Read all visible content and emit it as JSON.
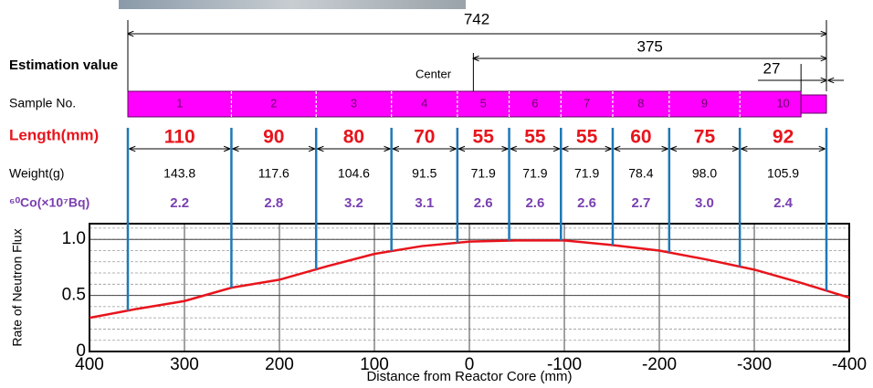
{
  "header": {
    "estimation": "Estimation value",
    "center": "Center"
  },
  "dimensions": {
    "total": 742,
    "center_span": 375,
    "end_gap": 27
  },
  "row_labels": {
    "sample": "Sample No.",
    "length": "Length(mm)",
    "weight": "Weight(g)",
    "co": "⁶⁰Co(×10⁷Bq)"
  },
  "samples": [
    {
      "no": 1,
      "length": 110,
      "weight": "143.8",
      "co": "2.2"
    },
    {
      "no": 2,
      "length": 90,
      "weight": "117.6",
      "co": "2.8"
    },
    {
      "no": 3,
      "length": 80,
      "weight": "104.6",
      "co": "3.2"
    },
    {
      "no": 4,
      "length": 70,
      "weight": "91.5",
      "co": "3.1"
    },
    {
      "no": 5,
      "length": 55,
      "weight": "71.9",
      "co": "2.6"
    },
    {
      "no": 6,
      "length": 55,
      "weight": "71.9",
      "co": "2.6"
    },
    {
      "no": 7,
      "length": 55,
      "weight": "71.9",
      "co": "2.6"
    },
    {
      "no": 8,
      "length": 60,
      "weight": "78.4",
      "co": "2.7"
    },
    {
      "no": 9,
      "length": 75,
      "weight": "98.0",
      "co": "3.0"
    },
    {
      "no": 10,
      "length": 92,
      "weight": "105.9",
      "co": "2.4"
    }
  ],
  "chart_data": {
    "type": "line",
    "x_label": "Distance from Reactor Core (mm)",
    "y_label": "Rate of Neutron Flux",
    "x": [
      400,
      350,
      300,
      250,
      200,
      150,
      100,
      50,
      0,
      -50,
      -100,
      -150,
      -200,
      -250,
      -300,
      -350,
      -400
    ],
    "series": [
      {
        "name": null,
        "color": "#e8141c",
        "values": [
          0.3,
          0.38,
          0.45,
          0.57,
          0.64,
          0.76,
          0.87,
          0.94,
          0.98,
          0.99,
          0.99,
          0.95,
          0.9,
          0.82,
          0.73,
          0.61,
          0.48
        ]
      }
    ],
    "xlim": [
      400,
      -400
    ],
    "xticks": [
      400,
      300,
      200,
      100,
      0,
      -100,
      -200,
      -300,
      -400
    ],
    "ylim": [
      0,
      1.14
    ],
    "yticks": [
      0,
      0.5,
      {
        "value": 1,
        "label": "1.0"
      }
    ],
    "grid": true
  }
}
